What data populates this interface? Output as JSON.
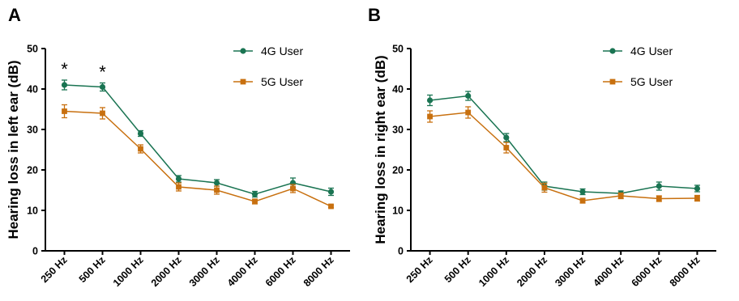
{
  "colors": {
    "series_4g": "#1a7452",
    "series_5g": "#c8700f",
    "axis": "#000000"
  },
  "chart_data": [
    {
      "panel": "A",
      "type": "line",
      "ylabel": "Hearing loss in left ear (dB)",
      "ylim": [
        0,
        50
      ],
      "yticks": [
        "0",
        "10",
        "20",
        "30",
        "40",
        "50"
      ],
      "categories": [
        "250 Hz",
        "500 Hz",
        "1000 Hz",
        "2000 Hz",
        "3000 Hz",
        "4000 Hz",
        "6000 Hz",
        "8000 Hz"
      ],
      "legend_position": "top-right",
      "series": [
        {
          "name": "4G User",
          "marker": "circle",
          "values": [
            41.0,
            40.5,
            29.0,
            17.8,
            16.8,
            14.0,
            16.8,
            14.6
          ],
          "errors": [
            1.2,
            1.0,
            0.7,
            0.8,
            0.8,
            0.7,
            1.2,
            0.9
          ]
        },
        {
          "name": "5G User",
          "marker": "square",
          "values": [
            34.5,
            34.0,
            25.2,
            15.8,
            15.0,
            12.2,
            15.4,
            11.0
          ],
          "errors": [
            1.6,
            1.4,
            1.0,
            1.0,
            1.0,
            0.6,
            1.0,
            0.3
          ]
        }
      ],
      "annotations": [
        {
          "text": "*",
          "category": "250 Hz"
        },
        {
          "text": "*",
          "category": "500 Hz"
        }
      ]
    },
    {
      "panel": "B",
      "type": "line",
      "ylabel": "Hearing loss in right ear (dB)",
      "ylim": [
        0,
        50
      ],
      "yticks": [
        "0",
        "10",
        "20",
        "30",
        "40",
        "50"
      ],
      "categories": [
        "250 Hz",
        "500 Hz",
        "1000 Hz",
        "2000 Hz",
        "3000 Hz",
        "4000 Hz",
        "6000 Hz",
        "8000 Hz"
      ],
      "legend_position": "top-right",
      "series": [
        {
          "name": "4G User",
          "marker": "circle",
          "values": [
            37.2,
            38.3,
            28.0,
            16.0,
            14.6,
            14.2,
            16.0,
            15.4
          ],
          "errors": [
            1.3,
            1.1,
            1.0,
            1.0,
            0.7,
            0.6,
            1.0,
            0.8
          ]
        },
        {
          "name": "5G User",
          "marker": "square",
          "values": [
            33.2,
            34.2,
            25.5,
            15.6,
            12.4,
            13.6,
            12.9,
            13.0
          ],
          "errors": [
            1.4,
            1.4,
            1.3,
            1.1,
            0.6,
            0.7,
            0.7,
            0.7
          ]
        }
      ],
      "annotations": []
    }
  ]
}
